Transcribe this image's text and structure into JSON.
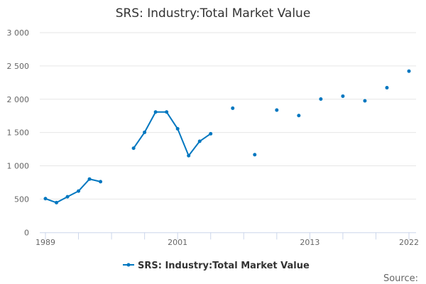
{
  "chart_data": {
    "type": "line",
    "title": "SRS: Industry:Total Market Value",
    "xlabel": "",
    "ylabel": "",
    "x": [
      1989,
      1990,
      1991,
      1992,
      1993,
      1994,
      1995,
      1996,
      1997,
      1998,
      1999,
      2000,
      2001,
      2002,
      2003,
      2004,
      2005,
      2006,
      2007,
      2008,
      2009,
      2010,
      2011,
      2012,
      2013,
      2014,
      2015,
      2016,
      2017,
      2018,
      2019,
      2020,
      2021,
      2022
    ],
    "series": [
      {
        "name": "SRS: Industry:Total Market Value",
        "color": "#0077c0",
        "values": [
          507,
          447,
          535,
          620,
          801,
          762,
          null,
          null,
          1264,
          1503,
          1808,
          1808,
          1556,
          1152,
          1368,
          1482,
          null,
          1865,
          null,
          1167,
          null,
          1837,
          null,
          1755,
          null,
          2003,
          null,
          2046,
          null,
          1976,
          null,
          2173,
          null,
          2422
        ]
      }
    ],
    "xlim": [
      1989,
      2022
    ],
    "ylim": [
      0,
      3000
    ],
    "x_ticks": [
      1989,
      2001,
      2013,
      2022
    ],
    "y_ticks": [
      0,
      500,
      1000,
      1500,
      2000,
      2500,
      3000
    ],
    "y_tick_labels": [
      "0",
      "500",
      "1 000",
      "1 500",
      "2 000",
      "2 500",
      "3 000"
    ],
    "grid": true,
    "legend_position": "bottom"
  },
  "credits": "Source:"
}
